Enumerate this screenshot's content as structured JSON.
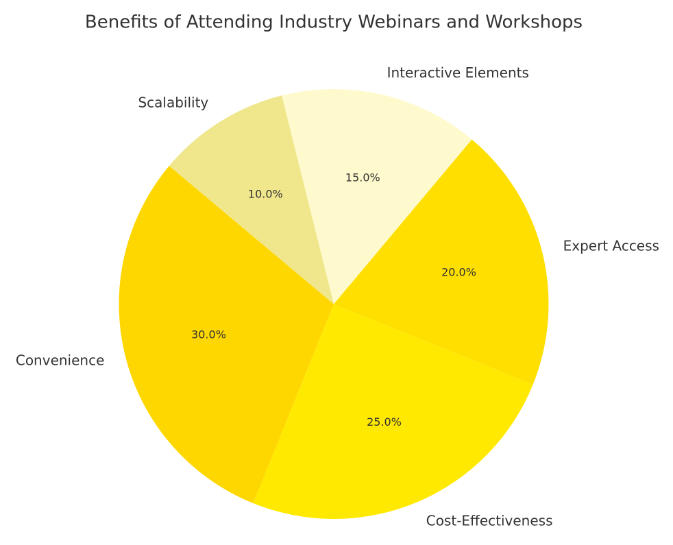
{
  "chart_data": {
    "type": "pie",
    "title": "Benefits of Attending Industry Webinars and Workshops",
    "categories": [
      "Convenience",
      "Cost-Effectiveness",
      "Expert Access",
      "Interactive Elements",
      "Scalability"
    ],
    "values": [
      30,
      25,
      20,
      15,
      10
    ],
    "value_labels": [
      "30.0%",
      "25.0%",
      "20.0%",
      "15.0%",
      "10.0%"
    ],
    "colors": [
      "#ffd700",
      "#ffe900",
      "#ffdf00",
      "#fffacd",
      "#f0e68c"
    ],
    "start_angle": 140
  }
}
